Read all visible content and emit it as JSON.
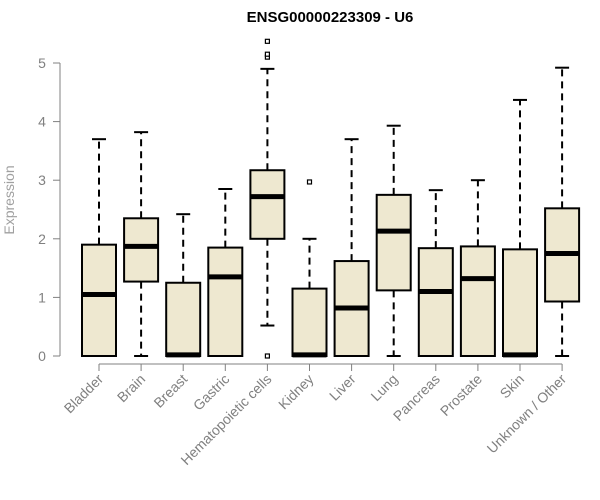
{
  "chart_data": {
    "type": "box",
    "title": "ENSG00000223309 - U6",
    "xlabel": "",
    "ylabel": "Expression",
    "ylim": [
      0,
      5
    ],
    "yticks": [
      "0",
      "1",
      "2",
      "3",
      "4",
      "5"
    ],
    "grid": false,
    "legend": "none",
    "categories": [
      "Bladder",
      "Brain",
      "Breast",
      "Gastric",
      "Hematopoietic cells",
      "Kidney",
      "Liver",
      "Lung",
      "Pancreas",
      "Prostate",
      "Skin",
      "Unknown / Other"
    ],
    "boxes": [
      {
        "min": 0,
        "q1": 0,
        "median": 1.05,
        "q3": 1.9,
        "max": 3.7,
        "outliers": []
      },
      {
        "min": 0,
        "q1": 1.27,
        "median": 1.87,
        "q3": 2.35,
        "max": 3.82,
        "outliers": []
      },
      {
        "min": 0,
        "q1": 0,
        "median": 0.02,
        "q3": 1.25,
        "max": 2.42,
        "outliers": []
      },
      {
        "min": 0,
        "q1": 0,
        "median": 1.35,
        "q3": 1.85,
        "max": 2.85,
        "outliers": []
      },
      {
        "min": 0.52,
        "q1": 2.0,
        "median": 2.72,
        "q3": 3.17,
        "max": 4.9,
        "outliers": [
          0.0,
          5.1,
          5.15,
          5.37
        ]
      },
      {
        "min": 0,
        "q1": 0,
        "median": 0.02,
        "q3": 1.15,
        "max": 2.0,
        "outliers": [
          2.97
        ]
      },
      {
        "min": 0,
        "q1": 0,
        "median": 0.82,
        "q3": 1.62,
        "max": 3.7,
        "outliers": []
      },
      {
        "min": 0,
        "q1": 1.12,
        "median": 2.13,
        "q3": 2.75,
        "max": 3.93,
        "outliers": []
      },
      {
        "min": 0,
        "q1": 0,
        "median": 1.1,
        "q3": 1.84,
        "max": 2.83,
        "outliers": []
      },
      {
        "min": 0,
        "q1": 0,
        "median": 1.32,
        "q3": 1.87,
        "max": 3.0,
        "outliers": []
      },
      {
        "min": 0,
        "q1": 0,
        "median": 0.02,
        "q3": 1.82,
        "max": 4.37,
        "outliers": []
      },
      {
        "min": 0,
        "q1": 0.93,
        "median": 1.75,
        "q3": 2.52,
        "max": 4.92,
        "outliers": []
      }
    ],
    "colors": {
      "box_fill": "#eee8d0",
      "box_stroke": "#000000",
      "axis": "#808080",
      "ylabel": "#a0a0a0"
    }
  }
}
